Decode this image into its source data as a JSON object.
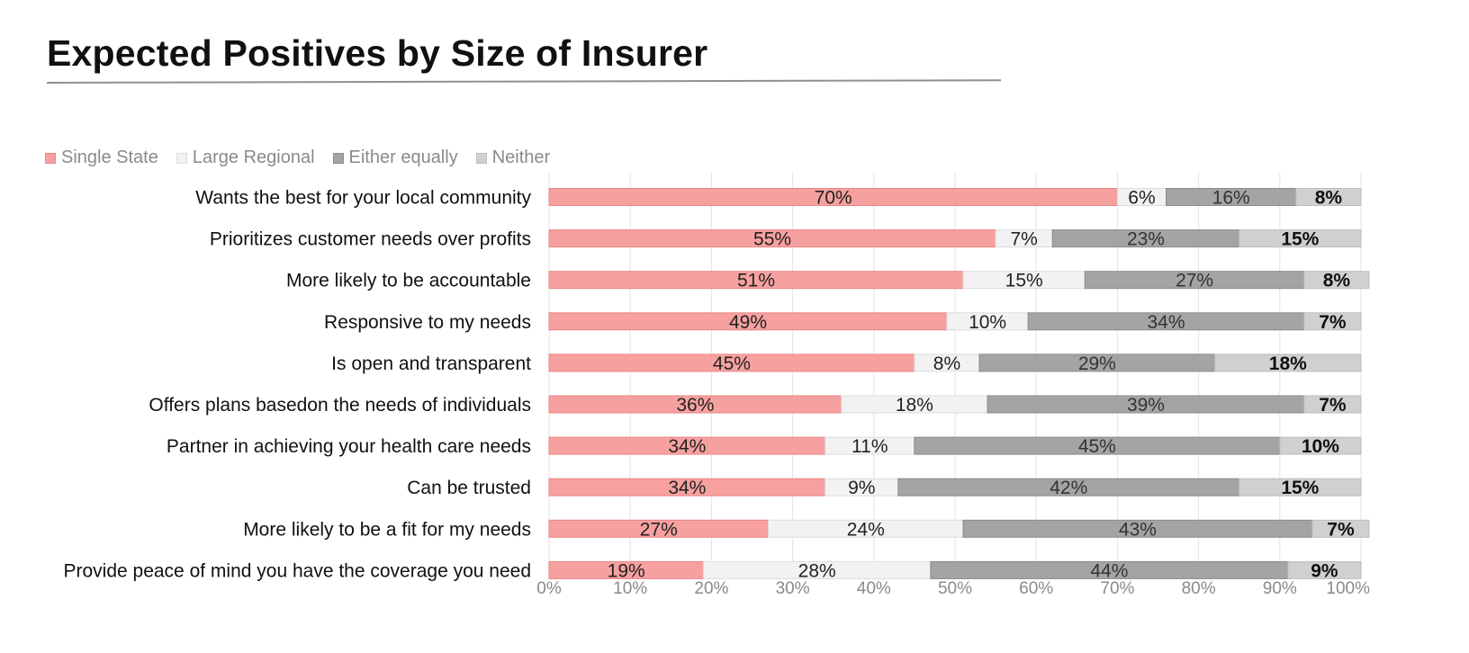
{
  "page": {
    "title": "Expected Positives by Size of Insurer"
  },
  "chart_data": {
    "type": "bar",
    "orientation": "horizontal",
    "stacked": "100%",
    "categories": [
      "Wants the best for your local community",
      "Prioritizes customer needs over profits",
      "More likely to be accountable",
      "Responsive to my needs",
      "Is open and transparent",
      "Offers plans basedon the needs of individuals",
      "Partner in achieving your health care needs",
      "Can be trusted",
      "More likely to be a fit for my needs",
      "Provide peace of mind you have the coverage you need"
    ],
    "series": [
      {
        "name": "Single State",
        "color": "#f6a1a0",
        "edge": "#e98584",
        "label_color": "#222222",
        "label_bold": false,
        "values": [
          70,
          55,
          51,
          49,
          45,
          36,
          34,
          34,
          27,
          19
        ]
      },
      {
        "name": "Large Regional",
        "color": "#f2f2f2",
        "edge": "#dcdcdc",
        "label_color": "#222222",
        "label_bold": false,
        "values": [
          6,
          7,
          15,
          10,
          8,
          18,
          11,
          9,
          24,
          28
        ]
      },
      {
        "name": "Either equally",
        "color": "#a4a4a4",
        "edge": "#8a8a8a",
        "label_color": "#333333",
        "label_bold": false,
        "values": [
          16,
          23,
          27,
          34,
          29,
          39,
          45,
          42,
          43,
          44
        ]
      },
      {
        "name": "Neither",
        "color": "#d0d0d0",
        "edge": "#bdbdbd",
        "label_color": "#111111",
        "label_bold": true,
        "values": [
          8,
          15,
          8,
          7,
          18,
          7,
          10,
          15,
          7,
          9
        ]
      }
    ],
    "x_ticks": [
      "0%",
      "10%",
      "20%",
      "30%",
      "40%",
      "50%",
      "60%",
      "70%",
      "80%",
      "90%",
      "100%"
    ],
    "xlim": [
      0,
      100
    ],
    "grid": true,
    "legend_position": "top-left",
    "xlabel": "",
    "ylabel": ""
  }
}
